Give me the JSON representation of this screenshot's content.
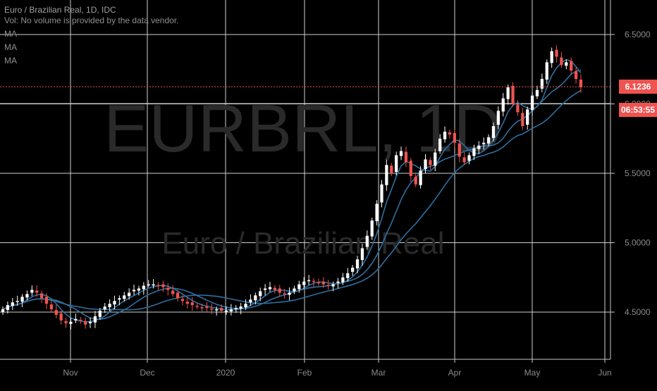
{
  "header": {
    "symbol_line": "Euro / Brazilian Real, 1D, IDC",
    "volume_note": "Vol: No volume is provided by the data vendor.",
    "ma_labels": [
      "MA",
      "MA",
      "MA"
    ]
  },
  "watermark": {
    "ticker": "EURBRL, 1D",
    "name": "Euro / Brazilian Real"
  },
  "price_scale": {
    "ticks": [
      "6.5000",
      "6.0000",
      "5.5000",
      "5.0000",
      "4.5000"
    ],
    "last_price": "6.1236",
    "countdown": "06:53:55"
  },
  "time_scale": {
    "ticks": [
      "Nov",
      "Dec",
      "2020",
      "Feb",
      "Mar",
      "Apr",
      "May",
      "Jun"
    ]
  },
  "colors": {
    "background": "#000000",
    "grid": "#d0d0d0",
    "up": "#ffffff",
    "down": "#ef5350",
    "ma": "#2f6f9f",
    "last_price_bg": "#ef5350"
  },
  "chart_data": {
    "type": "candlestick",
    "title": "Euro / Brazilian Real, 1D, IDC",
    "ylim": [
      4.2,
      6.6
    ],
    "x_ticks": [
      "Nov",
      "Dec",
      "2020",
      "Feb",
      "Mar",
      "Apr",
      "May",
      "Jun"
    ],
    "y_ticks": [
      6.5,
      6.0,
      5.5,
      5.0,
      4.5
    ],
    "grid": true,
    "last_price": 6.1236,
    "closes": [
      4.52,
      4.55,
      4.57,
      4.58,
      4.61,
      4.63,
      4.66,
      4.64,
      4.6,
      4.56,
      4.52,
      4.48,
      4.44,
      4.42,
      4.43,
      4.45,
      4.44,
      4.41,
      4.43,
      4.47,
      4.51,
      4.54,
      4.56,
      4.58,
      4.6,
      4.62,
      4.64,
      4.66,
      4.67,
      4.69,
      4.7,
      4.7,
      4.69,
      4.68,
      4.66,
      4.63,
      4.6,
      4.58,
      4.56,
      4.55,
      4.54,
      4.53,
      4.53,
      4.52,
      4.52,
      4.51,
      4.51,
      4.52,
      4.53,
      4.54,
      4.56,
      4.59,
      4.62,
      4.65,
      4.67,
      4.68,
      4.66,
      4.64,
      4.63,
      4.64,
      4.67,
      4.7,
      4.72,
      4.73,
      4.72,
      4.71,
      4.7,
      4.69,
      4.7,
      4.72,
      4.75,
      4.78,
      4.82,
      4.88,
      4.96,
      5.05,
      5.16,
      5.28,
      5.42,
      5.56,
      5.5,
      5.63,
      5.66,
      5.58,
      5.48,
      5.42,
      5.52,
      5.6,
      5.56,
      5.65,
      5.75,
      5.8,
      5.78,
      5.72,
      5.62,
      5.58,
      5.63,
      5.68,
      5.7,
      5.72,
      5.76,
      5.84,
      5.95,
      6.04,
      6.12,
      6.0,
      5.94,
      5.84,
      5.96,
      6.06,
      6.1,
      6.18,
      6.3,
      6.38,
      6.34,
      6.28,
      6.3,
      6.24,
      6.18,
      6.12
    ]
  }
}
